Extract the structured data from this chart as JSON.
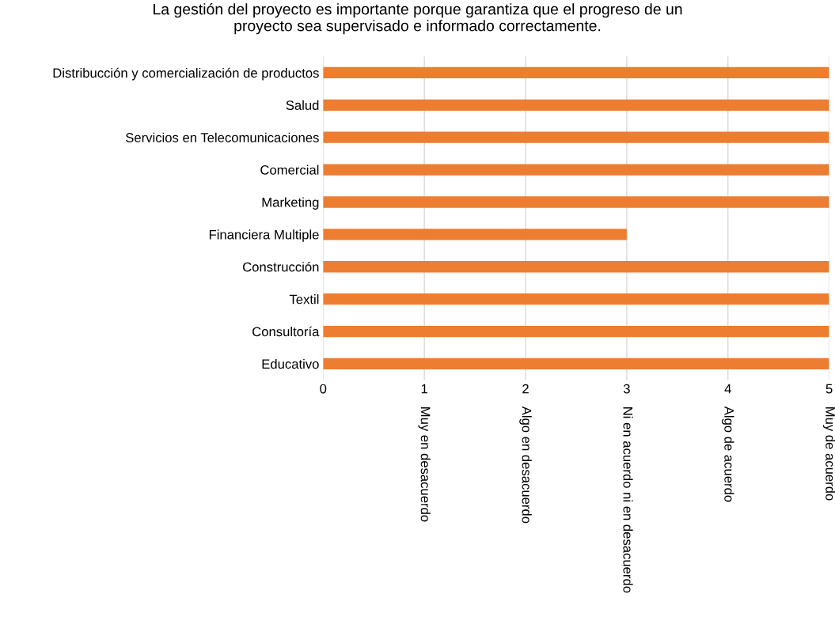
{
  "chart_data": {
    "type": "bar",
    "orientation": "horizontal",
    "title": "La gestión del proyecto es importante porque garantiza que el progreso de un\nproyecto sea supervisado e informado correctamente.",
    "categories": [
      "Distribucción y comercialización de productos",
      "Salud",
      "Servicios en Telecomunicaciones",
      "Comercial",
      "Marketing",
      "Financiera Multiple",
      "Construcción",
      "Textil",
      "Consultoría",
      "Educativo"
    ],
    "values": [
      5,
      5,
      5,
      5,
      5,
      3,
      5,
      5,
      5,
      5
    ],
    "color": "#ed7d31",
    "xlim": [
      0,
      5
    ],
    "xticks": [
      0,
      1,
      2,
      3,
      4,
      5
    ],
    "grid": "x",
    "legend": false,
    "annotations": [
      "Muy en desacuerdo",
      "Algo en desacuerdo",
      "Ni en acuerdo ni en desacuerdo",
      "Algo de acuerdo",
      "Muy de acuerdo"
    ]
  }
}
